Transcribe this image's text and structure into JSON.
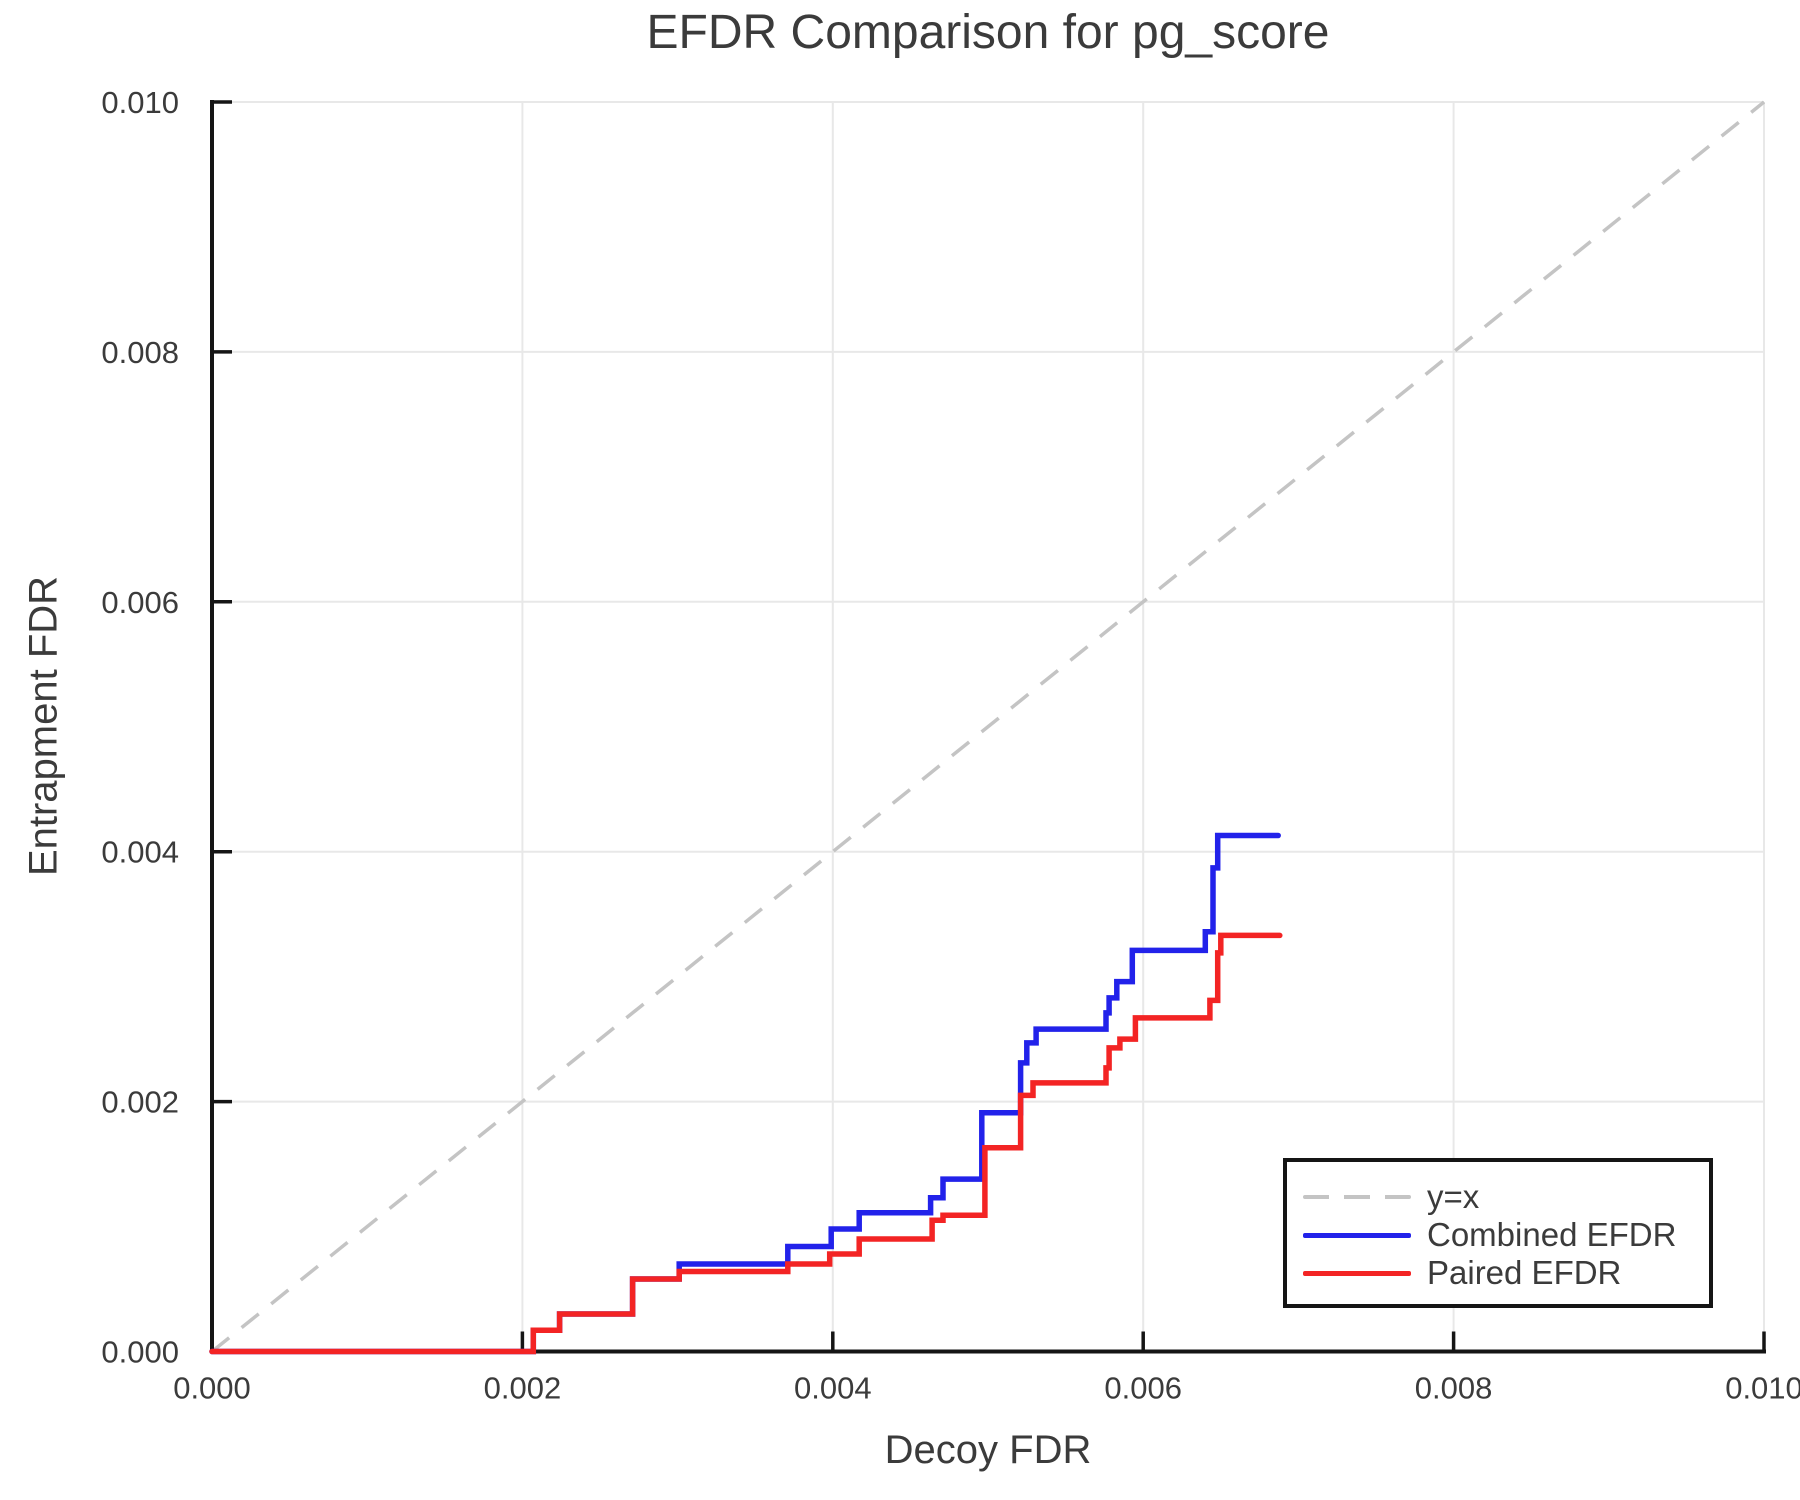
{
  "title": "EFDR Comparison for pg_score",
  "axes": {
    "xlabel": "Decoy FDR",
    "ylabel": "Entrapment FDR"
  },
  "legend": {
    "position": "lower right",
    "items": [
      {
        "label": "y=x",
        "color": "#c4c4c4",
        "style": "dashed"
      },
      {
        "label": "Combined EFDR",
        "color": "#2222ea",
        "style": "solid"
      },
      {
        "label": "Paired EFDR",
        "color": "#f32424",
        "style": "solid"
      }
    ]
  },
  "chart_data": {
    "type": "line",
    "title": "EFDR Comparison for pg_score",
    "xlabel": "Decoy FDR",
    "ylabel": "Entrapment FDR",
    "xlim": [
      0.0,
      0.01
    ],
    "ylim": [
      0.0,
      0.01
    ],
    "xticks": [
      0.0,
      0.002,
      0.004,
      0.006,
      0.008,
      0.01
    ],
    "yticks": [
      0.0,
      0.002,
      0.004,
      0.006,
      0.008,
      0.01
    ],
    "x_tick_labels": [
      "0.000",
      "0.002",
      "0.004",
      "0.006",
      "0.008",
      "0.010"
    ],
    "y_tick_labels": [
      "0.000",
      "0.002",
      "0.004",
      "0.006",
      "0.008",
      "0.010"
    ],
    "grid": true,
    "grid_color": "#e8e8e8",
    "spine_color": "#151515",
    "text_color": "#3b3b3b",
    "legend_position": "lower right",
    "series": [
      {
        "name": "y=x",
        "style": "dashed",
        "color": "#c4c4c4",
        "points": [
          [
            0.0,
            0.0
          ],
          [
            0.01,
            0.01
          ]
        ]
      },
      {
        "name": "Combined EFDR",
        "style": "step",
        "color": "#2222ea",
        "start": [
          0.0,
          0.0
        ],
        "steps": [
          [
            0.00207,
            0.00017
          ],
          [
            0.00224,
            0.0003
          ],
          [
            0.00271,
            0.00058
          ],
          [
            0.00301,
            0.0007
          ],
          [
            0.00371,
            0.00084
          ],
          [
            0.00399,
            0.00098
          ],
          [
            0.00417,
            0.00111
          ],
          [
            0.00463,
            0.00123
          ],
          [
            0.00471,
            0.00138
          ],
          [
            0.00496,
            0.00191
          ],
          [
            0.00521,
            0.00231
          ],
          [
            0.00525,
            0.00247
          ],
          [
            0.00531,
            0.00258
          ],
          [
            0.00576,
            0.00271
          ],
          [
            0.00578,
            0.00283
          ],
          [
            0.00583,
            0.00296
          ],
          [
            0.00593,
            0.00321
          ],
          [
            0.0064,
            0.00336
          ],
          [
            0.00645,
            0.00387
          ],
          [
            0.00648,
            0.00413
          ]
        ],
        "end_x": 0.00687
      },
      {
        "name": "Paired EFDR",
        "style": "step",
        "color": "#f32424",
        "start": [
          0.0,
          0.0
        ],
        "steps": [
          [
            0.00207,
            0.00017
          ],
          [
            0.00224,
            0.0003
          ],
          [
            0.00271,
            0.00058
          ],
          [
            0.00301,
            0.00064
          ],
          [
            0.00371,
            0.0007
          ],
          [
            0.00398,
            0.00078
          ],
          [
            0.00417,
            0.0009
          ],
          [
            0.00464,
            0.00105
          ],
          [
            0.00471,
            0.00109
          ],
          [
            0.00498,
            0.00163
          ],
          [
            0.00521,
            0.00205
          ],
          [
            0.00529,
            0.00215
          ],
          [
            0.00576,
            0.00227
          ],
          [
            0.00578,
            0.00243
          ],
          [
            0.00585,
            0.0025
          ],
          [
            0.00595,
            0.00267
          ],
          [
            0.00643,
            0.00281
          ],
          [
            0.00648,
            0.00319
          ],
          [
            0.0065,
            0.00333
          ]
        ],
        "end_x": 0.00688
      }
    ]
  }
}
